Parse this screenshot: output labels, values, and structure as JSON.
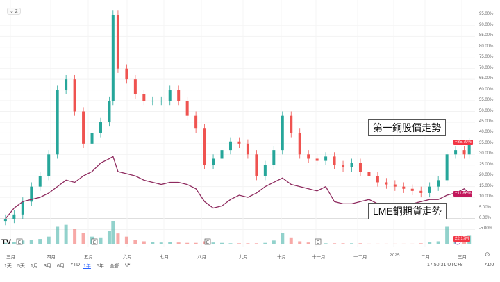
{
  "legend_toggle": "⌄ 2",
  "annotations": {
    "stock": "第一銅股價走勢",
    "lme": "LME銅期貨走勢"
  },
  "badges": {
    "stock": "+35.79%",
    "lme": "+11.86%",
    "volume": "22.17M"
  },
  "colors": {
    "up": "#26a69a",
    "down": "#ef5350",
    "lme_line": "#8e2a5e",
    "lme_badge": "#c2185b",
    "stock_badge": "#f23645"
  },
  "x_ticks": [
    "三月",
    "四月",
    "五月",
    "六月",
    "七月",
    "八月",
    "九月",
    "十月",
    "十一月",
    "十二月",
    "2025",
    "二月",
    "三月"
  ],
  "event_markers": [
    "E",
    "E",
    "E",
    "E"
  ],
  "range_buttons": [
    "1天",
    "5天",
    "1月",
    "3月",
    "6月",
    "YTD",
    "1年",
    "5年",
    "全部"
  ],
  "active_range": "1年",
  "time": "17:50:31 UTC+8",
  "adj": "ADJ",
  "chart_data": {
    "type": "candlestick",
    "y_unit": "%",
    "ylim": [
      -7,
      97
    ],
    "y_ticks": [
      "95.00%",
      "90.00%",
      "85.00%",
      "80.00%",
      "75.00%",
      "70.00%",
      "65.00%",
      "60.00%",
      "55.00%",
      "50.00%",
      "45.00%",
      "40.00%",
      "35.00%",
      "30.00%",
      "25.00%",
      "20.00%",
      "15.00%",
      "10.00%",
      "5.00%",
      "0.00%",
      "-5.00%"
    ],
    "dates": [
      "2024-02-26",
      "2024-03-04",
      "2024-03-11",
      "2024-03-18",
      "2024-03-25",
      "2024-04-01",
      "2024-04-08",
      "2024-04-15",
      "2024-04-22",
      "2024-04-29",
      "2024-05-06",
      "2024-05-13",
      "2024-05-20",
      "2024-05-23",
      "2024-05-27",
      "2024-06-03",
      "2024-06-10",
      "2024-06-17",
      "2024-06-24",
      "2024-07-01",
      "2024-07-08",
      "2024-07-15",
      "2024-07-22",
      "2024-07-29",
      "2024-08-05",
      "2024-08-12",
      "2024-08-19",
      "2024-08-26",
      "2024-09-02",
      "2024-09-09",
      "2024-09-16",
      "2024-09-23",
      "2024-09-30",
      "2024-10-07",
      "2024-10-14",
      "2024-10-21",
      "2024-10-28",
      "2024-11-04",
      "2024-11-11",
      "2024-11-18",
      "2024-11-25",
      "2024-12-02",
      "2024-12-09",
      "2024-12-16",
      "2024-12-23",
      "2024-12-30",
      "2025-01-06",
      "2025-01-13",
      "2025-01-20",
      "2025-01-27",
      "2025-02-03",
      "2025-02-10",
      "2025-02-17",
      "2025-02-24",
      "2025-03-03",
      "2025-03-07"
    ],
    "series": [
      {
        "name": "第一銅股價走勢",
        "values": [
          0,
          2,
          8,
          15,
          20,
          30,
          60,
          65,
          50,
          35,
          40,
          45,
          55,
          95,
          70,
          65,
          58,
          55,
          55,
          55,
          60,
          55,
          48,
          42,
          25,
          28,
          32,
          36,
          35,
          30,
          20,
          25,
          32,
          48,
          40,
          30,
          28,
          27,
          29,
          25,
          24,
          26,
          22,
          20,
          17,
          16,
          15,
          14,
          13,
          12,
          15,
          18,
          30,
          32,
          30,
          35.79
        ]
      },
      {
        "name": "LME銅期貨走勢",
        "values": [
          0,
          5,
          8,
          9,
          10,
          12,
          15,
          18,
          17,
          20,
          22,
          26,
          28,
          29,
          22,
          21,
          20,
          18,
          17,
          16,
          17,
          17,
          16,
          14,
          8,
          5,
          6,
          9,
          11,
          10,
          12,
          15,
          17,
          19,
          16,
          15,
          14,
          13,
          15,
          8,
          7,
          7,
          8,
          9,
          7,
          6,
          5,
          6,
          7,
          8,
          9,
          9,
          11,
          12,
          14,
          11.86
        ]
      }
    ],
    "volume_unit": "M",
    "volume": [
      4,
      6,
      10,
      12,
      14,
      20,
      45,
      50,
      40,
      30,
      20,
      18,
      35,
      60,
      28,
      20,
      12,
      8,
      6,
      5,
      6,
      5,
      4,
      4,
      8,
      5,
      4,
      3,
      3,
      3,
      3,
      4,
      10,
      30,
      18,
      8,
      5,
      4,
      3,
      3,
      3,
      3,
      3,
      2,
      2,
      2,
      2,
      2,
      2,
      3,
      6,
      8,
      45,
      20,
      12,
      22.17
    ]
  }
}
